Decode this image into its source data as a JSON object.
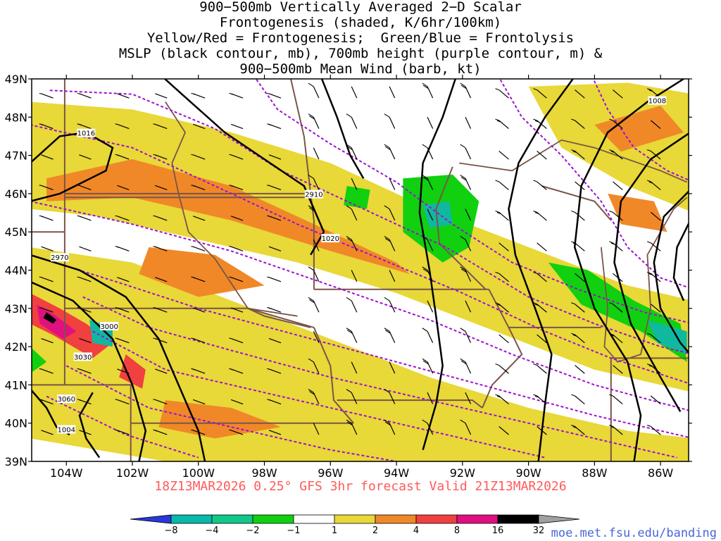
{
  "title_lines": [
    "900−500mb Vertically Averaged 2−D Scalar",
    "Frontogenesis (shaded, K/6hr/100km)",
    "Yellow/Red = Frontogenesis;  Green/Blue = Frontolysis",
    "MSLP (black contour, mb), 700mb height (purple contour, m) &",
    "900−500mb Mean Wind (barb, kt)"
  ],
  "subtitle": "18Z13MAR2026 0.25° GFS 3hr forecast Valid 21Z13MAR2026",
  "credit": "moe.met.fsu.edu/banding",
  "axes": {
    "lat_labels": [
      "49N",
      "48N",
      "47N",
      "46N",
      "45N",
      "44N",
      "43N",
      "42N",
      "41N",
      "40N",
      "39N"
    ],
    "lon_labels": [
      "104W",
      "102W",
      "100W",
      "98W",
      "96W",
      "94W",
      "92W",
      "90W",
      "88W",
      "86W"
    ]
  },
  "contour_labels": [
    {
      "text": "1016",
      "lon": -103.4,
      "lat": 47.55
    },
    {
      "text": "2910",
      "lon": -96.5,
      "lat": 45.95
    },
    {
      "text": "1020",
      "lon": -96.0,
      "lat": 44.8
    },
    {
      "text": "2970",
      "lon": -104.2,
      "lat": 44.3
    },
    {
      "text": "3000",
      "lon": -102.7,
      "lat": 42.5
    },
    {
      "text": "3030",
      "lon": -103.5,
      "lat": 41.7
    },
    {
      "text": "3060",
      "lon": -104.0,
      "lat": 40.6
    },
    {
      "text": "1004",
      "lon": -104.0,
      "lat": 39.8
    },
    {
      "text": "1008",
      "lon": -86.1,
      "lat": 48.4
    }
  ],
  "colorbar": {
    "labels": [
      "−8",
      "−4",
      "−2",
      "−1",
      "1",
      "2",
      "4",
      "8",
      "16",
      "32"
    ],
    "colors": [
      "#2838d8",
      "#08b8a8",
      "#10c888",
      "#10d010",
      "#ffffff",
      "#e8d838",
      "#f08828",
      "#f04040",
      "#e01080",
      "#000000",
      "#a0a0a0"
    ]
  },
  "colors": {
    "mslp": "#000000",
    "height": "#a010d0",
    "borders": "#7a5548",
    "frontogenesis_weak": "#e8d838",
    "frontogenesis_moderate": "#f08828",
    "frontogenesis_strong": "#f04040",
    "frontolysis": "#10d010",
    "frontolysis_strong": "#10b8a0"
  }
}
